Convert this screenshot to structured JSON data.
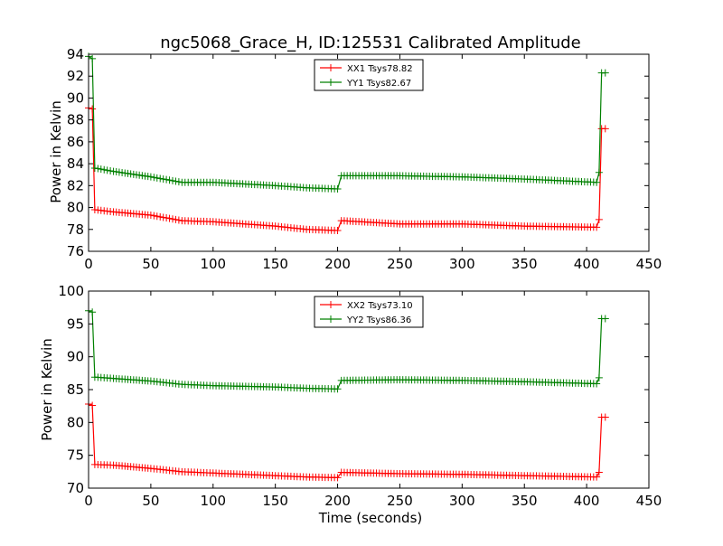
{
  "chart_data": [
    {
      "type": "line",
      "title": "ngc5068_Grace_H, ID:125531 Calibrated Amplitude",
      "xlabel": "",
      "ylabel": "Power in Kelvin",
      "xlim": [
        0,
        450
      ],
      "ylim": [
        76,
        94
      ],
      "xticks": [
        "0",
        "50",
        "100",
        "150",
        "200",
        "250",
        "300",
        "350",
        "400",
        "450"
      ],
      "yticks": [
        "76",
        "78",
        "80",
        "82",
        "84",
        "86",
        "88",
        "90",
        "92",
        "94"
      ],
      "legend_position": "top-center",
      "marker": "+",
      "series": [
        {
          "name": "XX1 Tsys78.82",
          "color": "#ff0000",
          "points": [
            [
              0,
              89.1
            ],
            [
              3,
              89.0
            ],
            [
              5,
              79.8
            ],
            [
              20,
              79.6
            ],
            [
              50,
              79.3
            ],
            [
              75,
              78.8
            ],
            [
              100,
              78.7
            ],
            [
              150,
              78.3
            ],
            [
              175,
              78.0
            ],
            [
              200,
              77.9
            ],
            [
              203,
              78.8
            ],
            [
              250,
              78.5
            ],
            [
              300,
              78.5
            ],
            [
              350,
              78.3
            ],
            [
              408,
              78.2
            ],
            [
              410,
              78.9
            ],
            [
              412,
              87.2
            ],
            [
              415,
              87.2
            ]
          ]
        },
        {
          "name": "YY1 Tsys82.67",
          "color": "#008000",
          "points": [
            [
              0,
              93.8
            ],
            [
              3,
              93.6
            ],
            [
              5,
              83.6
            ],
            [
              20,
              83.3
            ],
            [
              50,
              82.8
            ],
            [
              75,
              82.3
            ],
            [
              100,
              82.3
            ],
            [
              150,
              82.0
            ],
            [
              175,
              81.8
            ],
            [
              200,
              81.7
            ],
            [
              203,
              82.9
            ],
            [
              250,
              82.9
            ],
            [
              300,
              82.8
            ],
            [
              350,
              82.6
            ],
            [
              408,
              82.3
            ],
            [
              410,
              83.2
            ],
            [
              412,
              92.3
            ],
            [
              415,
              92.3
            ]
          ]
        }
      ]
    },
    {
      "type": "line",
      "title": "",
      "xlabel": "Time (seconds)",
      "ylabel": "Power in Kelvin",
      "xlim": [
        0,
        450
      ],
      "ylim": [
        70,
        100
      ],
      "xticks": [
        "0",
        "50",
        "100",
        "150",
        "200",
        "250",
        "300",
        "350",
        "400",
        "450"
      ],
      "yticks": [
        "70",
        "75",
        "80",
        "85",
        "90",
        "95",
        "100"
      ],
      "legend_position": "top-center",
      "marker": "+",
      "series": [
        {
          "name": "XX2 Tsys73.10",
          "color": "#ff0000",
          "points": [
            [
              0,
              82.8
            ],
            [
              3,
              82.6
            ],
            [
              5,
              73.6
            ],
            [
              20,
              73.5
            ],
            [
              50,
              73.0
            ],
            [
              75,
              72.5
            ],
            [
              100,
              72.3
            ],
            [
              150,
              71.9
            ],
            [
              175,
              71.7
            ],
            [
              200,
              71.6
            ],
            [
              203,
              72.4
            ],
            [
              250,
              72.2
            ],
            [
              300,
              72.1
            ],
            [
              350,
              71.9
            ],
            [
              408,
              71.7
            ],
            [
              410,
              72.4
            ],
            [
              412,
              80.8
            ],
            [
              415,
              80.8
            ]
          ]
        },
        {
          "name": "YY2 Tsys86.36",
          "color": "#008000",
          "points": [
            [
              0,
              97.0
            ],
            [
              3,
              96.8
            ],
            [
              5,
              86.9
            ],
            [
              20,
              86.7
            ],
            [
              50,
              86.3
            ],
            [
              75,
              85.8
            ],
            [
              100,
              85.6
            ],
            [
              150,
              85.4
            ],
            [
              175,
              85.2
            ],
            [
              200,
              85.1
            ],
            [
              203,
              86.4
            ],
            [
              250,
              86.5
            ],
            [
              300,
              86.4
            ],
            [
              350,
              86.2
            ],
            [
              408,
              85.9
            ],
            [
              410,
              86.8
            ],
            [
              412,
              95.8
            ],
            [
              415,
              95.8
            ]
          ]
        }
      ]
    }
  ]
}
